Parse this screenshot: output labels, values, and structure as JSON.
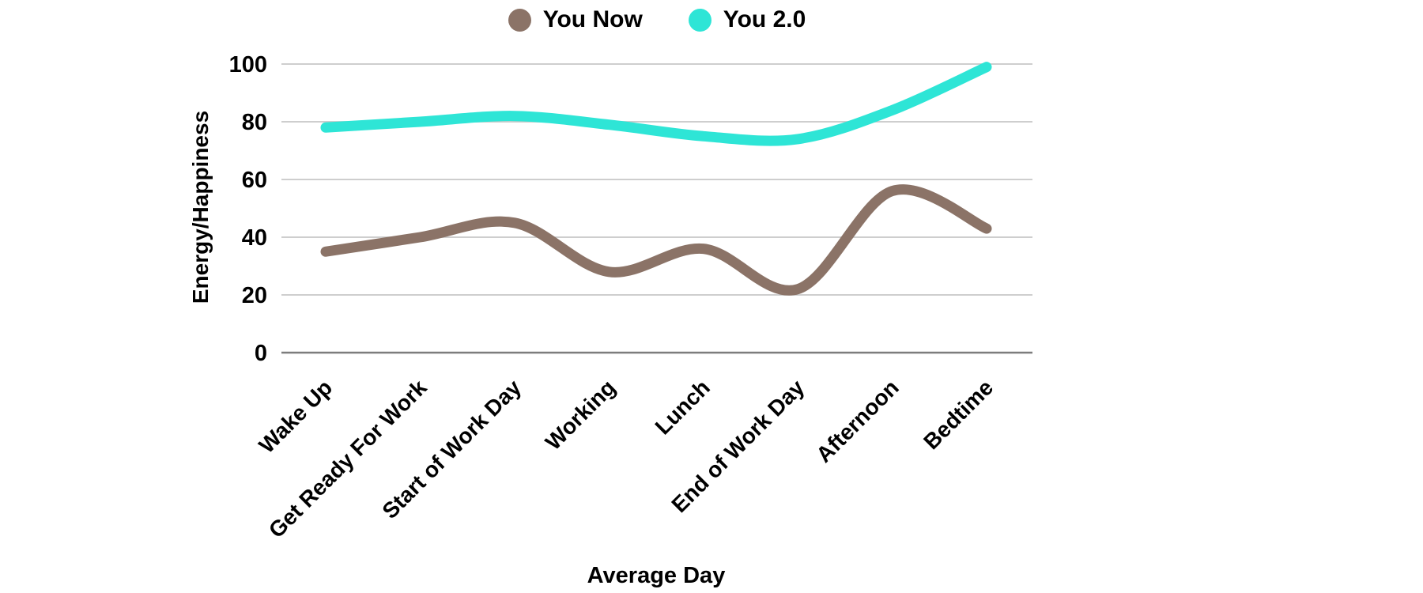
{
  "page": {
    "background": "#ffffff"
  },
  "legend": {
    "items": [
      {
        "label": "You Now",
        "color": "#8b7367"
      },
      {
        "label": "You 2.0",
        "color": "#2ee5d6"
      }
    ]
  },
  "chart_data": {
    "type": "line",
    "title": "",
    "xlabel": "Average Day",
    "ylabel": "Energy/Happiness",
    "categories": [
      "Wake Up",
      "Get Ready For Work",
      "Start of Work Day",
      "Working",
      "Lunch",
      "End of Work Day",
      "Afternoon",
      "Bedtime"
    ],
    "series": [
      {
        "name": "You Now",
        "color": "#8b7367",
        "values": [
          35,
          40,
          45,
          28,
          36,
          22,
          56,
          43
        ]
      },
      {
        "name": "You 2.0",
        "color": "#2ee5d6",
        "values": [
          78,
          80,
          82,
          79,
          75,
          74,
          84,
          99
        ]
      }
    ],
    "ylim": [
      0,
      100
    ],
    "yticks": [
      0,
      20,
      40,
      60,
      80,
      100
    ],
    "grid": true,
    "gridline_color": "#c7c7c7",
    "axisline_color": "#7d7d7d",
    "legend_position": "top-center",
    "line_style": "smooth",
    "x_tick_rotation_deg": -45
  }
}
